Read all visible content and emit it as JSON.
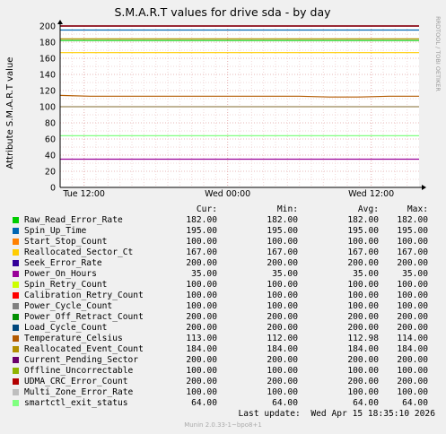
{
  "chart_data": {
    "type": "line",
    "title": "S.M.A.R.T values for drive sda - by day",
    "ylabel": "Attribute S.M.A.R.T value",
    "watermark": "RRDTOOL / TOBI OETIKER",
    "ylim": [
      0,
      200
    ],
    "yticks": [
      "0",
      "20",
      "40",
      "60",
      "80",
      "100",
      "120",
      "140",
      "160",
      "180",
      "200"
    ],
    "xticks": [
      "Tue 12:00",
      "Wed 00:00",
      "Wed 12:00"
    ],
    "grid": true,
    "columns": [
      "Cur:",
      "Min:",
      "Avg:",
      "Max:"
    ],
    "series": [
      {
        "name": "Raw_Read_Error_Rate",
        "color": "#00cc00",
        "cur": "182.00",
        "min": "182.00",
        "avg": "182.00",
        "max": "182.00",
        "values": [
          182,
          182
        ]
      },
      {
        "name": "Spin_Up_Time",
        "color": "#0066b3",
        "cur": "195.00",
        "min": "195.00",
        "avg": "195.00",
        "max": "195.00",
        "values": [
          195,
          195
        ]
      },
      {
        "name": "Start_Stop_Count",
        "color": "#ff8000",
        "cur": "100.00",
        "min": "100.00",
        "avg": "100.00",
        "max": "100.00",
        "values": [
          100,
          100
        ]
      },
      {
        "name": "Reallocated_Sector_Ct",
        "color": "#ffcc00",
        "cur": "167.00",
        "min": "167.00",
        "avg": "167.00",
        "max": "167.00",
        "values": [
          167,
          167
        ]
      },
      {
        "name": "Seek_Error_Rate",
        "color": "#330099",
        "cur": "200.00",
        "min": "200.00",
        "avg": "200.00",
        "max": "200.00",
        "values": [
          200,
          200
        ]
      },
      {
        "name": "Power_On_Hours",
        "color": "#990099",
        "cur": "35.00",
        "min": "35.00",
        "avg": "35.00",
        "max": "35.00",
        "values": [
          35,
          35
        ]
      },
      {
        "name": "Spin_Retry_Count",
        "color": "#ccff00",
        "cur": "100.00",
        "min": "100.00",
        "avg": "100.00",
        "max": "100.00",
        "values": [
          100,
          100
        ]
      },
      {
        "name": "Calibration_Retry_Count",
        "color": "#ff0000",
        "cur": "100.00",
        "min": "100.00",
        "avg": "100.00",
        "max": "100.00",
        "values": [
          100,
          100
        ]
      },
      {
        "name": "Power_Cycle_Count",
        "color": "#808080",
        "cur": "100.00",
        "min": "100.00",
        "avg": "100.00",
        "max": "100.00",
        "values": [
          100,
          100
        ]
      },
      {
        "name": "Power_Off_Retract_Count",
        "color": "#008f00",
        "cur": "200.00",
        "min": "200.00",
        "avg": "200.00",
        "max": "200.00",
        "values": [
          200,
          200
        ]
      },
      {
        "name": "Load_Cycle_Count",
        "color": "#00487d",
        "cur": "200.00",
        "min": "200.00",
        "avg": "200.00",
        "max": "200.00",
        "values": [
          200,
          200
        ]
      },
      {
        "name": "Temperature_Celsius",
        "color": "#b35a00",
        "cur": "113.00",
        "min": "112.00",
        "avg": "112.98",
        "max": "114.00",
        "values": [
          114,
          113,
          113,
          113,
          113,
          113,
          113,
          113,
          113,
          112,
          112,
          113,
          113
        ]
      },
      {
        "name": "Reallocated_Event_Count",
        "color": "#b38f00",
        "cur": "184.00",
        "min": "184.00",
        "avg": "184.00",
        "max": "184.00",
        "values": [
          184,
          184
        ]
      },
      {
        "name": "Current_Pending_Sector",
        "color": "#6b006b",
        "cur": "200.00",
        "min": "200.00",
        "avg": "200.00",
        "max": "200.00",
        "values": [
          200,
          200
        ]
      },
      {
        "name": "Offline_Uncorrectable",
        "color": "#8fb300",
        "cur": "100.00",
        "min": "100.00",
        "avg": "100.00",
        "max": "100.00",
        "values": [
          100,
          100
        ]
      },
      {
        "name": "UDMA_CRC_Error_Count",
        "color": "#b30000",
        "cur": "200.00",
        "min": "200.00",
        "avg": "200.00",
        "max": "200.00",
        "values": [
          200,
          200
        ]
      },
      {
        "name": "Multi_Zone_Error_Rate",
        "color": "#bebebe",
        "cur": "100.00",
        "min": "100.00",
        "avg": "100.00",
        "max": "100.00",
        "values": [
          100,
          100
        ]
      },
      {
        "name": "smartctl_exit_status",
        "color": "#80ff80",
        "cur": "64.00",
        "min": "64.00",
        "avg": "64.00",
        "max": "64.00",
        "values": [
          64,
          64
        ]
      }
    ]
  },
  "last_update": "Last update:  Wed Apr 15 18:35:10 2026",
  "footer": "Munin 2.0.33-1~bpo8+1"
}
